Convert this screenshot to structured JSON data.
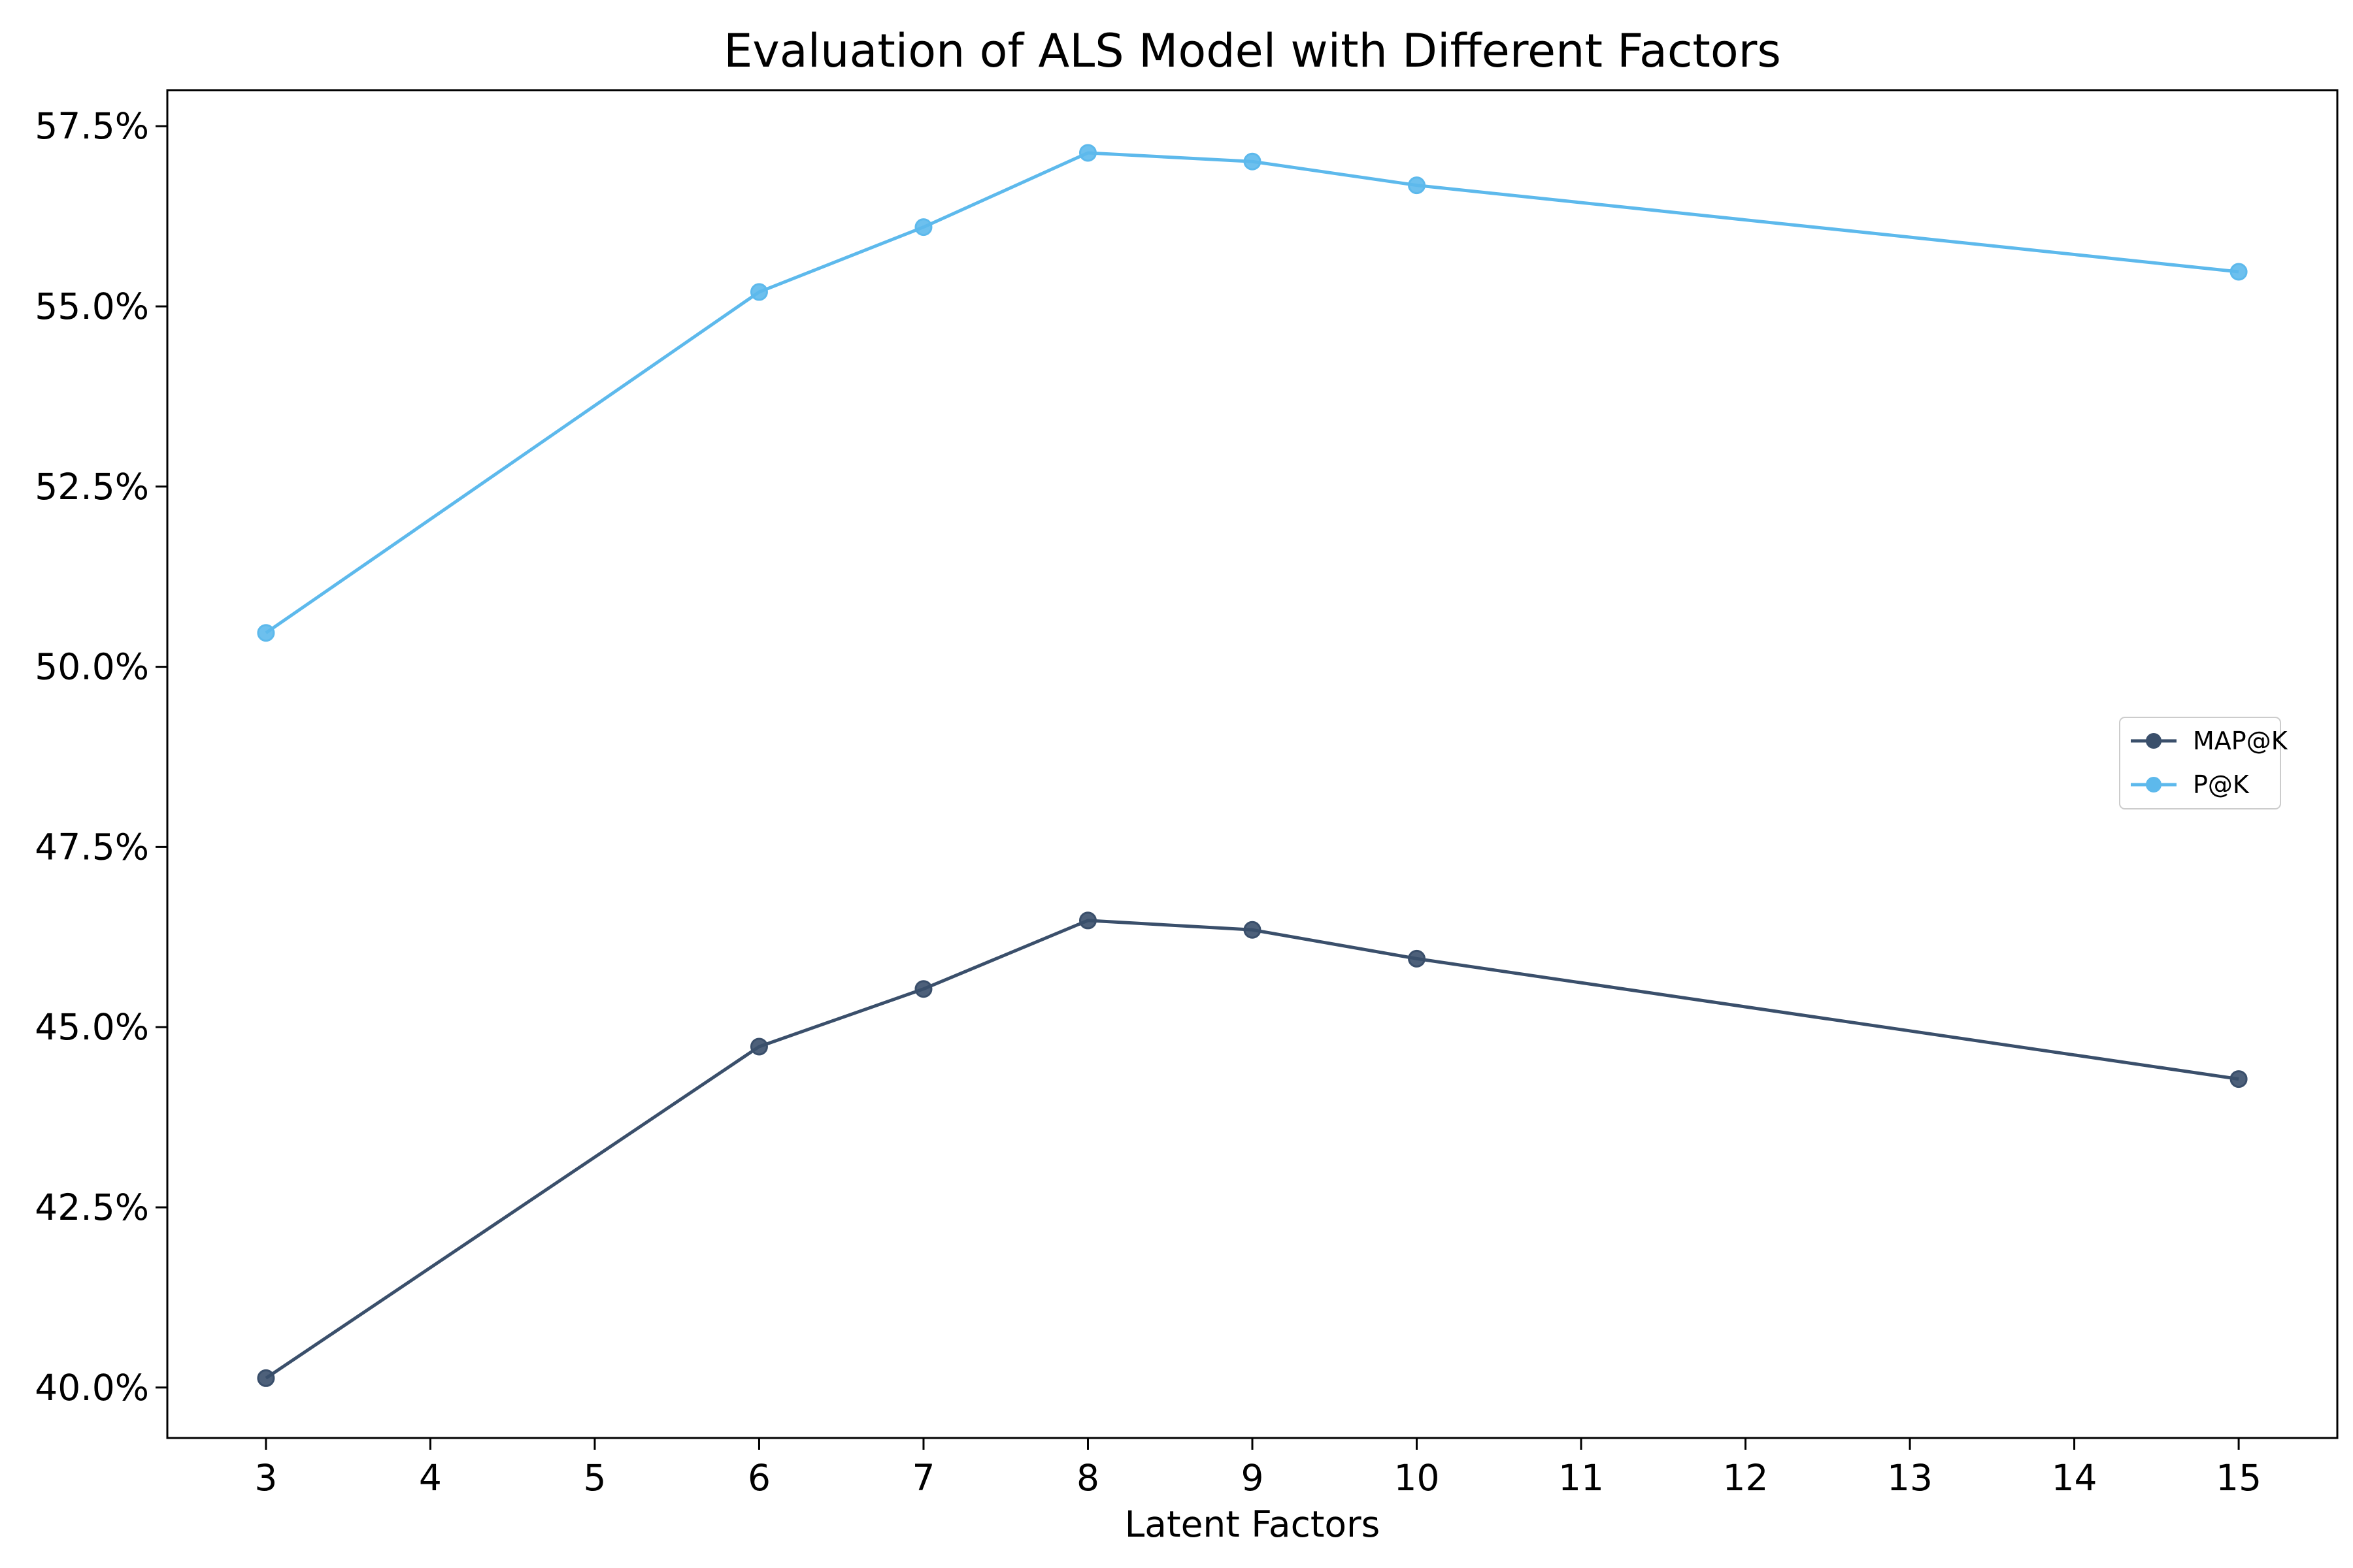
{
  "chart_data": {
    "type": "line",
    "title": "Evaluation of ALS Model with Different Factors",
    "xlabel": "Latent Factors",
    "ylabel": "",
    "x": [
      3,
      6,
      7,
      8,
      9,
      10,
      15
    ],
    "x_ticks": [
      "3",
      "4",
      "5",
      "6",
      "7",
      "8",
      "9",
      "10",
      "11",
      "12",
      "13",
      "14",
      "15"
    ],
    "y_ticks": [
      "40.0%",
      "42.5%",
      "45.0%",
      "47.5%",
      "50.0%",
      "52.5%",
      "55.0%",
      "57.5%"
    ],
    "xlim": [
      2.4,
      15.6
    ],
    "ylim": [
      39.3,
      58.0
    ],
    "grid": false,
    "legend_position": "center-right",
    "series": [
      {
        "name": "MAP@K",
        "color": "#3a4f6b",
        "values": [
          40.13,
          44.73,
          45.53,
          46.48,
          46.35,
          45.95,
          44.28
        ]
      },
      {
        "name": "P@K",
        "color": "#5db9ec",
        "values": [
          50.47,
          55.2,
          56.1,
          57.13,
          57.01,
          56.68,
          55.48
        ]
      }
    ]
  }
}
